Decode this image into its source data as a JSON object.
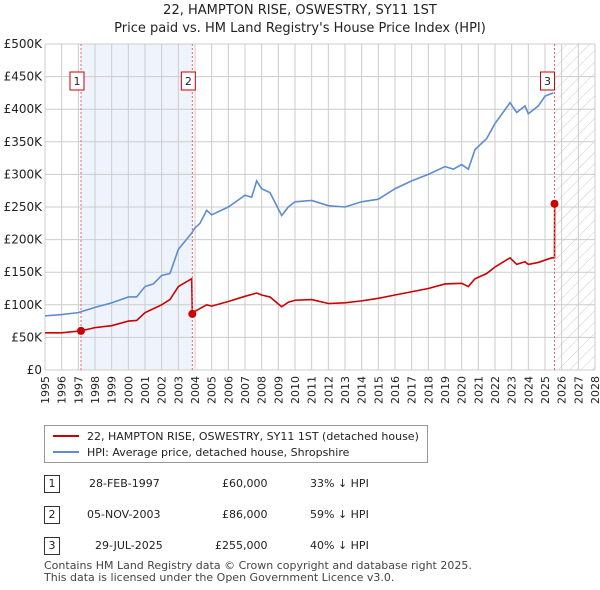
{
  "title": "22, HAMPTON RISE, OSWESTRY, SY11 1ST",
  "subtitle": "Price paid vs. HM Land Registry's House Price Index (HPI)",
  "chart_data": {
    "type": "line",
    "xlim": [
      1995,
      2028
    ],
    "ylim": [
      0,
      500000
    ],
    "yticks": [
      0,
      50000,
      100000,
      150000,
      200000,
      250000,
      300000,
      350000,
      400000,
      450000,
      500000
    ],
    "ytick_labels": [
      "£0",
      "£50K",
      "£100K",
      "£150K",
      "£200K",
      "£250K",
      "£300K",
      "£350K",
      "£400K",
      "£450K",
      "£500K"
    ],
    "xticks": [
      1995,
      1996,
      1997,
      1998,
      1999,
      2000,
      2001,
      2002,
      2003,
      2004,
      2005,
      2006,
      2007,
      2008,
      2009,
      2010,
      2011,
      2012,
      2013,
      2014,
      2015,
      2016,
      2017,
      2018,
      2019,
      2020,
      2021,
      2022,
      2023,
      2024,
      2025,
      2026,
      2027,
      2028
    ],
    "series": [
      {
        "name": "22, HAMPTON RISE, OSWESTRY, SY11 1ST (detached house)",
        "color": "#cc0000",
        "x": [
          1995,
          1996,
          1997.16,
          1998,
          1999,
          2000,
          2000.5,
          2001,
          2002,
          2002.5,
          2003,
          2003.8,
          2003.84,
          2004,
          2004.7,
          2005,
          2006,
          2007,
          2007.7,
          2008,
          2008.5,
          2009.2,
          2009.6,
          2010,
          2011,
          2012,
          2013,
          2014,
          2015,
          2016,
          2017,
          2018,
          2019,
          2020,
          2020.4,
          2020.8,
          2021.5,
          2022,
          2022.9,
          2023.3,
          2023.8,
          2024,
          2024.6,
          2025.4,
          2025.57,
          2025.58
        ],
        "y": [
          57000,
          57000,
          60000,
          65000,
          68000,
          75000,
          76000,
          88000,
          100000,
          108000,
          128000,
          140000,
          86000,
          90000,
          100000,
          98000,
          105000,
          113000,
          118000,
          115000,
          112000,
          97000,
          104000,
          107000,
          108000,
          102000,
          103000,
          106000,
          110000,
          115000,
          120000,
          125000,
          132000,
          133000,
          128000,
          140000,
          148000,
          158000,
          172000,
          162000,
          166000,
          162000,
          165000,
          172000,
          172000,
          255000
        ]
      },
      {
        "name": "HPI: Average price, detached house, Shropshire",
        "color": "#5b8dd0",
        "x": [
          1995,
          1996,
          1997,
          1998,
          1999,
          2000,
          2000.5,
          2001,
          2001.5,
          2002,
          2002.5,
          2003,
          2003.8,
          2004,
          2004.3,
          2004.7,
          2005,
          2006,
          2007,
          2007.4,
          2007.7,
          2008,
          2008.5,
          2009.2,
          2009.6,
          2010,
          2011,
          2012,
          2013,
          2014,
          2015,
          2016,
          2017,
          2018,
          2019,
          2019.5,
          2020,
          2020.4,
          2020.8,
          2021.5,
          2022,
          2022.9,
          2023.3,
          2023.8,
          2024,
          2024.6,
          2025,
          2025.5
        ],
        "y": [
          83000,
          85000,
          88000,
          96000,
          103000,
          112000,
          112000,
          128000,
          132000,
          145000,
          148000,
          185000,
          210000,
          218000,
          225000,
          245000,
          238000,
          250000,
          268000,
          265000,
          290000,
          278000,
          272000,
          237000,
          250000,
          258000,
          260000,
          252000,
          250000,
          258000,
          262000,
          278000,
          290000,
          300000,
          312000,
          308000,
          315000,
          308000,
          338000,
          355000,
          378000,
          410000,
          395000,
          405000,
          393000,
          405000,
          420000,
          425000
        ]
      }
    ],
    "sales": [
      {
        "label": "1",
        "x": 1997.16,
        "y": 60000
      },
      {
        "label": "2",
        "x": 2003.84,
        "y": 86000
      },
      {
        "label": "3",
        "x": 2025.57,
        "y": 255000
      }
    ],
    "shaded_range": [
      1997.16,
      2003.84
    ],
    "forecast_hatch_from": 2025.57
  },
  "legend": {
    "red": "22, HAMPTON RISE, OSWESTRY, SY11 1ST (detached house)",
    "blue": "HPI: Average price, detached house, Shropshire"
  },
  "table": [
    {
      "num": "1",
      "date": "28-FEB-1997",
      "price": "£60,000",
      "hpi": "33% ↓ HPI"
    },
    {
      "num": "2",
      "date": "05-NOV-2003",
      "price": "£86,000",
      "hpi": "59% ↓ HPI"
    },
    {
      "num": "3",
      "date": "29-JUL-2025",
      "price": "£255,000",
      "hpi": "40% ↓ HPI"
    }
  ],
  "footer": {
    "line1": "Contains HM Land Registry data © Crown copyright and database right 2025.",
    "line2": "This data is licensed under the Open Government Licence v3.0."
  }
}
